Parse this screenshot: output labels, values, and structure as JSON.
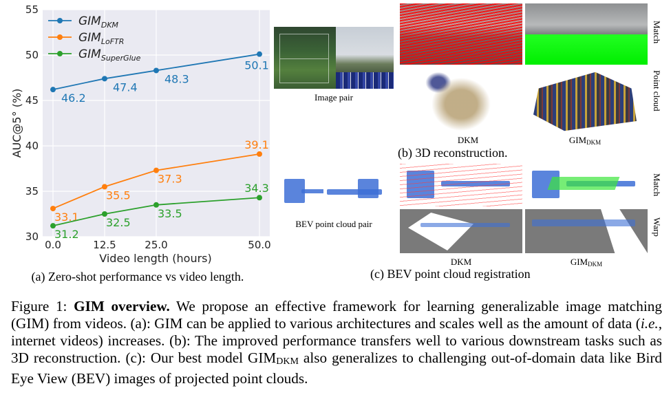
{
  "chart_data": {
    "type": "line",
    "x": [
      0.0,
      12.5,
      25.0,
      50.0
    ],
    "xticklabels": [
      "0.0",
      "12.5",
      "25.0",
      "50.0"
    ],
    "xlabel": "Video length (hours)",
    "ylabel": "AUC@5° (%)",
    "ylim": [
      30,
      55
    ],
    "yticks": [
      30,
      35,
      40,
      45,
      50,
      55
    ],
    "grid": true,
    "legend_position": "top-left",
    "series": [
      {
        "name": "GIM",
        "name_sub": "DKM",
        "color": "#1f77b4",
        "values": [
          46.2,
          47.4,
          48.3,
          50.1
        ],
        "labels": [
          "46.2",
          "47.4",
          "48.3",
          "50.1"
        ]
      },
      {
        "name": "GIM",
        "name_sub": "LoFTR",
        "color": "#ff7f0e",
        "values": [
          33.1,
          35.5,
          37.3,
          39.1
        ],
        "labels": [
          "33.1",
          "35.5",
          "37.3",
          "39.1"
        ]
      },
      {
        "name": "GIM",
        "name_sub": "SuperGlue",
        "color": "#2ca02c",
        "values": [
          31.2,
          32.5,
          33.5,
          34.3
        ],
        "labels": [
          "31.2",
          "32.5",
          "33.5",
          "34.3"
        ]
      }
    ]
  },
  "captions": {
    "a": "(a) Zero-shot performance vs video length.",
    "b": "(b) 3D reconstruction.",
    "c": "(c) BEV point cloud registration"
  },
  "labels": {
    "image_pair": "Image pair",
    "dkm": "DKM",
    "gim_dkm_main": "GIM",
    "gim_dkm_sub": "DKM",
    "bev_pair": "BEV point cloud pair",
    "match": "Match",
    "point_cloud": "Point cloud",
    "warp": "Warp"
  },
  "figure_caption": {
    "prefix": "Figure 1: ",
    "bold": "GIM overview.",
    "t1": " We propose an effective framework for learning generalizable image matching (GIM) from videos. (a): GIM can be applied to various architectures and scales well as the amount of data (",
    "ie": "i.e.",
    "t2": ", internet videos) increases. (b): The improved performance transfers well to various downstream tasks such as 3D reconstruction. (c): Our best model GIM",
    "sub": "DKM",
    "t3": " also generalizes to challenging out-of-domain data like Bird Eye View (BEV) images of projected point clouds."
  }
}
